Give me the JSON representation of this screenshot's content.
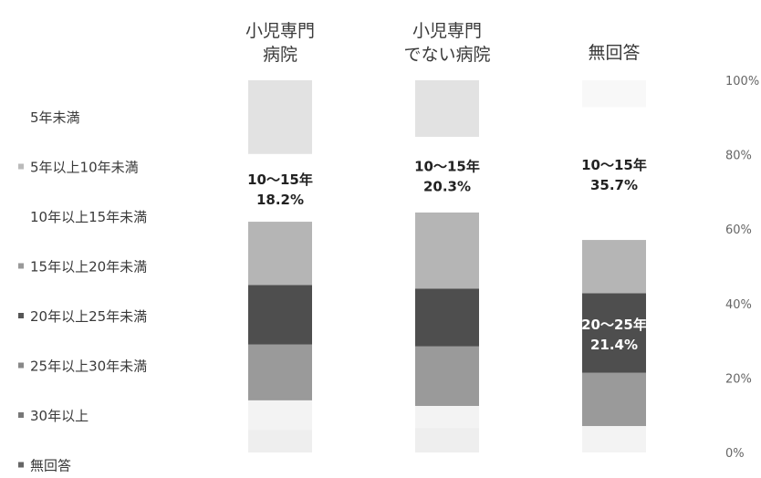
{
  "chart_data": {
    "type": "bar",
    "stacked": true,
    "percent": true,
    "ylim": [
      0,
      100
    ],
    "y_ticks": [
      "0%",
      "20%",
      "40%",
      "60%",
      "80%",
      "100%"
    ],
    "categories": [
      {
        "line1": "小児専門",
        "line2": "病院"
      },
      {
        "line1": "小児専門",
        "line2": "でない病院"
      },
      {
        "line1": "無回答",
        "line2": ""
      }
    ],
    "series": [
      {
        "name": "無回答",
        "color": "#eeeeee",
        "values": [
          6.0,
          6.5,
          0.0
        ]
      },
      {
        "name": "30年以上",
        "color": "#f3f3f3",
        "values": [
          8.0,
          6.0,
          7.1
        ]
      },
      {
        "name": "25年以上30年未満",
        "color": "#9a9a9a",
        "values": [
          15.0,
          16.0,
          14.3
        ]
      },
      {
        "name": "20年以上25年未満",
        "color": "#4e4e4e",
        "values": [
          16.0,
          15.5,
          21.4
        ]
      },
      {
        "name": "15年以上20年未満",
        "color": "#b5b5b5",
        "values": [
          17.0,
          20.5,
          14.3
        ]
      },
      {
        "name": "10年以上15年未満",
        "color": "#ffffff",
        "values": [
          18.2,
          20.3,
          35.7
        ]
      },
      {
        "name": "5年以上10年未満",
        "color": "#e2e2e2",
        "values": [
          19.8,
          15.2,
          0.0
        ]
      },
      {
        "name": "5年未満",
        "color": "#f8f8f8",
        "values": [
          0.0,
          0.0,
          7.2
        ]
      }
    ],
    "annotations": [
      {
        "category": 0,
        "series": "10年以上15年未満",
        "line1": "10～15年",
        "line2": "18.2%",
        "color": "#222222"
      },
      {
        "category": 1,
        "series": "10年以上15年未満",
        "line1": "10～15年",
        "line2": "20.3%",
        "color": "#222222"
      },
      {
        "category": 2,
        "series": "10年以上15年未満",
        "line1": "10～15年",
        "line2": "35.7%",
        "color": "#222222"
      },
      {
        "category": 2,
        "series": "20年以上25年未満",
        "line1": "20～25年",
        "line2": "21.4%",
        "color": "#ffffff"
      }
    ],
    "legend": {
      "position": "left",
      "items": [
        "5年未満",
        "5年以上10年未満",
        "10年以上15年未満",
        "15年以上20年未満",
        "20年以上25年未満",
        "25年以上30年未満",
        "30年以上",
        "無回答"
      ],
      "markers": [
        "",
        "#bbbbbb",
        "",
        "#999999",
        "#555555",
        "#888888",
        "#777777",
        "#666666"
      ]
    }
  }
}
